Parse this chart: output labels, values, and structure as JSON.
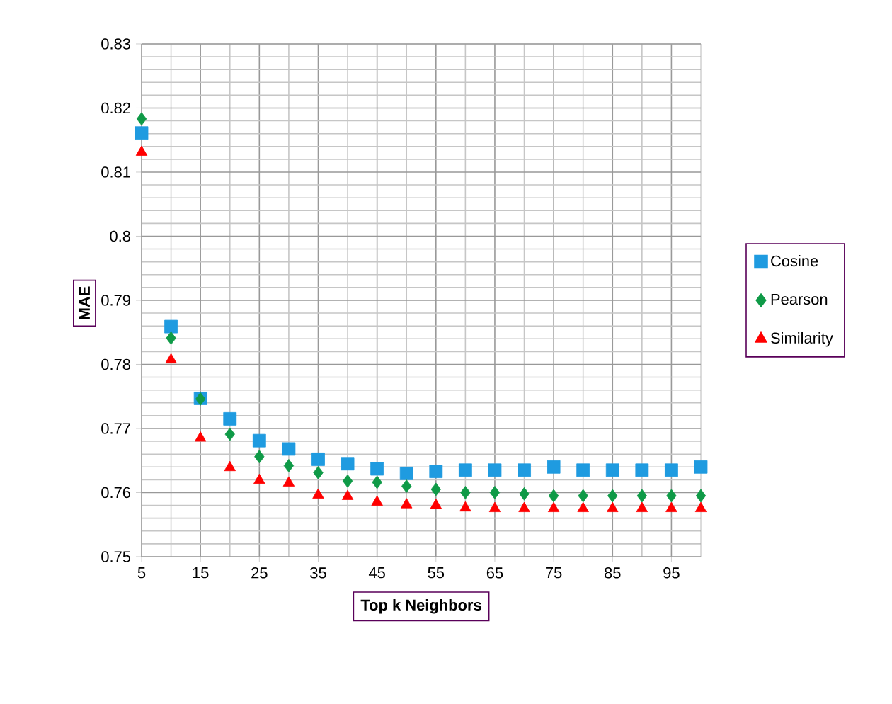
{
  "chart_data": {
    "type": "scatter",
    "xlabel": "Top k Neighbors",
    "ylabel": "MAE",
    "x": [
      5,
      10,
      15,
      20,
      25,
      30,
      35,
      40,
      45,
      50,
      55,
      60,
      65,
      70,
      75,
      80,
      85,
      90,
      95,
      100
    ],
    "series": [
      {
        "name": "Cosine",
        "color": "#1f9be0",
        "marker": "square",
        "values": [
          0.8161,
          0.7859,
          0.7747,
          0.7715,
          0.7681,
          0.7668,
          0.7652,
          0.7645,
          0.7637,
          0.763,
          0.7633,
          0.7635,
          0.7635,
          0.7635,
          0.764,
          0.7635,
          0.7635,
          0.7635,
          0.7635,
          0.764
        ]
      },
      {
        "name": "Pearson",
        "color": "#0f9a47",
        "marker": "diamond",
        "values": [
          0.8183,
          0.7841,
          0.7746,
          0.7691,
          0.7656,
          0.7642,
          0.7631,
          0.7618,
          0.7616,
          0.761,
          0.7605,
          0.76,
          0.76,
          0.7598,
          0.7595,
          0.7595,
          0.7595,
          0.7595,
          0.7595,
          0.7595
        ]
      },
      {
        "name": "Similarity",
        "color": "#ff0000",
        "marker": "triangle",
        "values": [
          0.8131,
          0.7807,
          0.7685,
          0.7639,
          0.7619,
          0.7615,
          0.7596,
          0.7594,
          0.7585,
          0.7581,
          0.758,
          0.7576,
          0.7575,
          0.7575,
          0.7575,
          0.7575,
          0.7575,
          0.7575,
          0.7575,
          0.7575
        ]
      }
    ],
    "xlim": [
      5,
      100
    ],
    "xticks": [
      5,
      15,
      25,
      35,
      45,
      55,
      65,
      75,
      85,
      95
    ],
    "ylim": [
      0.75,
      0.83
    ],
    "yticks": [
      0.75,
      0.76,
      0.77,
      0.78,
      0.79,
      0.8,
      0.81,
      0.82,
      0.83
    ],
    "grid": true,
    "legend": "right"
  }
}
